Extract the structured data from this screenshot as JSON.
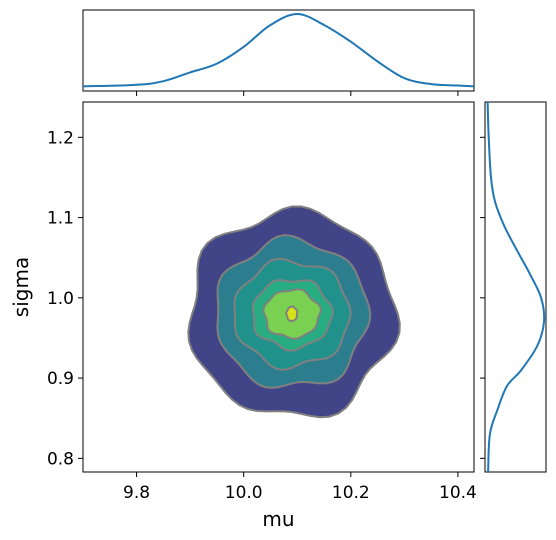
{
  "chart_data": {
    "type": "kde_joint",
    "xlabel": "mu",
    "ylabel": "sigma",
    "xlim": [
      9.7,
      10.43
    ],
    "ylim": [
      0.783,
      1.244
    ],
    "x_ticks": [
      9.8,
      10.0,
      10.2,
      10.4
    ],
    "x_tick_labels": [
      "9.8",
      "10.0",
      "10.2",
      "10.4"
    ],
    "y_ticks": [
      0.8,
      0.9,
      1.0,
      1.1,
      1.2
    ],
    "y_tick_labels": [
      "0.8",
      "0.9",
      "1.0",
      "1.1",
      "1.2"
    ],
    "joint_kde": {
      "center": [
        10.09,
        0.98
      ],
      "levels": [
        {
          "level": 1,
          "half_width_x": 0.192,
          "half_height_y": 0.128,
          "color": "#414487"
        },
        {
          "level": 2,
          "half_width_x": 0.142,
          "half_height_y": 0.092,
          "color": "#2c7e8e"
        },
        {
          "level": 3,
          "half_width_x": 0.108,
          "half_height_y": 0.066,
          "color": "#21918c"
        },
        {
          "level": 4,
          "half_width_x": 0.074,
          "half_height_y": 0.043,
          "color": "#27ad81"
        },
        {
          "level": 5,
          "half_width_x": 0.052,
          "half_height_y": 0.03,
          "color": "#7ad151"
        },
        {
          "level": 6,
          "half_width_x": 0.01,
          "half_height_y": 0.009,
          "color": "#d8e219"
        }
      ],
      "contour_line_color": "#808080"
    },
    "marginal_x": {
      "x": [
        9.7,
        9.8,
        9.85,
        9.9,
        9.95,
        10.0,
        10.05,
        10.1,
        10.15,
        10.2,
        10.25,
        10.3,
        10.35,
        10.4,
        10.43
      ],
      "density": [
        0.01,
        0.03,
        0.08,
        0.2,
        0.32,
        0.55,
        0.85,
        1.0,
        0.85,
        0.62,
        0.35,
        0.12,
        0.04,
        0.02,
        0.01
      ]
    },
    "marginal_y": {
      "y": [
        0.783,
        0.83,
        0.86,
        0.89,
        0.91,
        0.94,
        0.97,
        1.0,
        1.03,
        1.06,
        1.09,
        1.12,
        1.15,
        1.2,
        1.244
      ],
      "density": [
        0.02,
        0.05,
        0.18,
        0.35,
        0.6,
        0.88,
        1.0,
        0.95,
        0.75,
        0.52,
        0.3,
        0.14,
        0.07,
        0.03,
        0.01
      ]
    },
    "line_color": "#1f77b4",
    "grid": false
  }
}
